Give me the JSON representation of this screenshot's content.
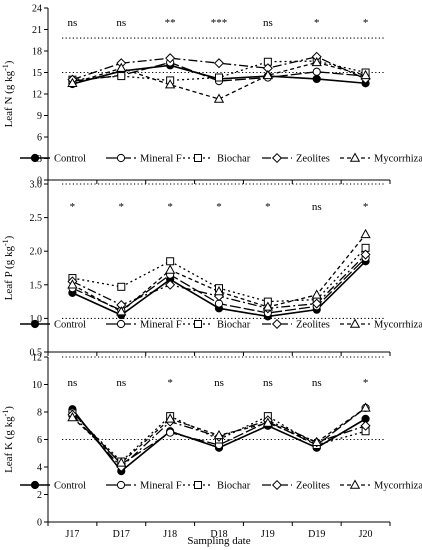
{
  "chart_data": {
    "type": "line",
    "x_categories": [
      "J17",
      "D17",
      "J18",
      "D18",
      "J19",
      "D19",
      "J20"
    ],
    "xlabel": "Sampling date",
    "series_names": [
      "Control",
      "Mineral F",
      "Biochar",
      "Zeolites",
      "Mycorrhizal"
    ],
    "panels": [
      {
        "id": "leaf-n",
        "ylabel_main": "Leaf N (g kg",
        "ylabel_sup": "-1",
        "ylabel_end": ")",
        "ylim": [
          0,
          24
        ],
        "yticks": [
          "0",
          "3",
          "6",
          "9",
          "12",
          "15",
          "18",
          "21",
          "24"
        ],
        "reference_lines": [
          15,
          19.8
        ],
        "significance": [
          "ns",
          "ns",
          "**",
          "***",
          "ns",
          "*",
          "*"
        ],
        "series": [
          {
            "name": "Control",
            "values": [
              13.4,
              15.2,
              16.0,
              14.1,
              14.5,
              14.1,
              13.5
            ]
          },
          {
            "name": "Mineral F",
            "values": [
              13.8,
              14.6,
              16.4,
              13.8,
              14.3,
              15.1,
              14.5
            ]
          },
          {
            "name": "Biochar",
            "values": [
              14.0,
              14.5,
              13.9,
              14.3,
              16.5,
              16.6,
              15.0
            ]
          },
          {
            "name": "Zeolites",
            "values": [
              14.0,
              16.3,
              17.0,
              16.3,
              15.6,
              17.2,
              14.1
            ]
          },
          {
            "name": "Mycorrhizal",
            "values": [
              13.5,
              15.6,
              13.3,
              11.3,
              14.6,
              16.4,
              14.6
            ]
          }
        ]
      },
      {
        "id": "leaf-p",
        "ylabel_main": "Leaf P (g kg",
        "ylabel_sup": "-1",
        "ylabel_end": ")",
        "ylim": [
          0.5,
          3.0
        ],
        "yticks": [
          "0.5",
          "1.0",
          "1.5",
          "2.0",
          "2.5",
          "3.0"
        ],
        "reference_lines": [
          1.0,
          3.0
        ],
        "significance": [
          "*",
          "*",
          "*",
          "*",
          "*",
          "ns",
          "*"
        ],
        "series": [
          {
            "name": "Control",
            "values": [
              1.38,
              1.05,
              1.58,
              1.15,
              1.03,
              1.13,
              1.85
            ]
          },
          {
            "name": "Mineral F",
            "values": [
              1.45,
              1.12,
              1.65,
              1.22,
              1.08,
              1.18,
              1.9
            ]
          },
          {
            "name": "Biochar",
            "values": [
              1.6,
              1.47,
              1.85,
              1.45,
              1.25,
              1.28,
              2.05
            ]
          },
          {
            "name": "Zeolites",
            "values": [
              1.55,
              1.2,
              1.5,
              1.33,
              1.15,
              1.22,
              1.95
            ]
          },
          {
            "name": "Mycorrhizal",
            "values": [
              1.5,
              1.1,
              1.72,
              1.4,
              1.17,
              1.35,
              2.25
            ]
          }
        ]
      },
      {
        "id": "leaf-k",
        "ylabel_main": "Leaf K (g kg",
        "ylabel_sup": "-1",
        "ylabel_end": ")",
        "ylim": [
          0,
          12
        ],
        "yticks": [
          "0",
          "2",
          "4",
          "6",
          "8",
          "10",
          "12"
        ],
        "reference_lines": [
          6,
          12
        ],
        "significance": [
          "ns",
          "ns",
          "*",
          "ns",
          "ns",
          "ns",
          "*"
        ],
        "series": [
          {
            "name": "Control",
            "values": [
              8.2,
              3.7,
              6.6,
              5.4,
              7.0,
              5.4,
              7.5
            ]
          },
          {
            "name": "Mineral F",
            "values": [
              8.0,
              4.2,
              6.5,
              5.6,
              7.3,
              5.6,
              8.3
            ]
          },
          {
            "name": "Biochar",
            "values": [
              7.9,
              4.4,
              7.7,
              6.0,
              7.7,
              5.6,
              6.6
            ]
          },
          {
            "name": "Zeolites",
            "values": [
              7.8,
              4.0,
              7.3,
              6.2,
              7.4,
              5.8,
              7.0
            ]
          },
          {
            "name": "Mycorrhizal",
            "values": [
              7.6,
              4.3,
              7.5,
              6.3,
              7.2,
              5.8,
              8.3
            ]
          }
        ]
      }
    ]
  }
}
